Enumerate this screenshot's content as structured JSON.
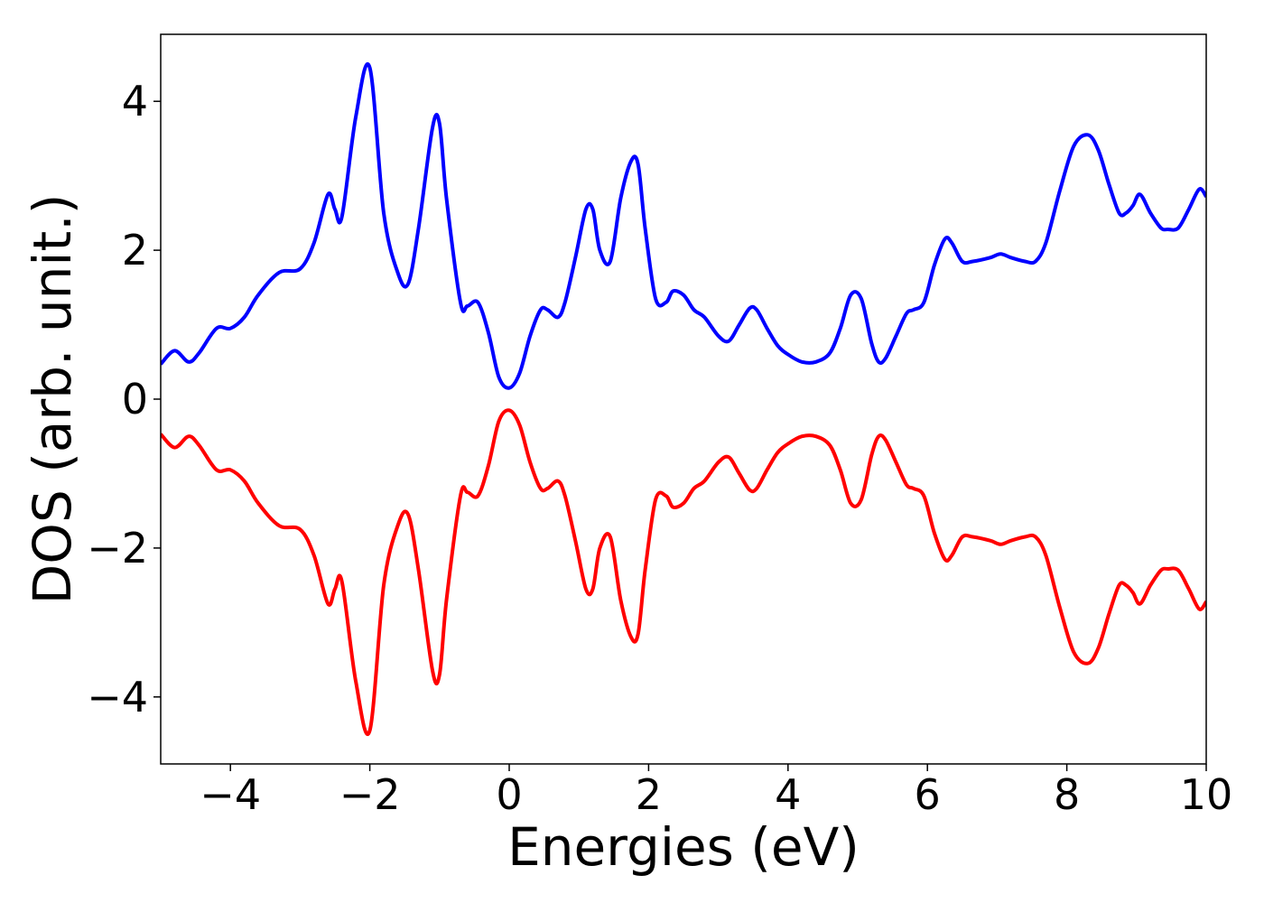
{
  "chart_data": {
    "type": "line",
    "title": "",
    "xlabel": "Energies (eV)",
    "ylabel": "DOS (arb. unit.)",
    "xlim": [
      -5,
      10
    ],
    "ylim": [
      -4.9,
      4.9
    ],
    "xticks": [
      -4,
      -2,
      0,
      2,
      4,
      6,
      8,
      10
    ],
    "yticks": [
      -4,
      -2,
      0,
      2,
      4
    ],
    "xtick_labels": [
      "−4",
      "−2",
      "0",
      "2",
      "4",
      "6",
      "8",
      "10"
    ],
    "ytick_labels": [
      "−4",
      "−2",
      "0",
      "2",
      "4"
    ],
    "grid": false,
    "legend": "none",
    "series": [
      {
        "color": "#0000ff",
        "x": [
          -5,
          -4.8,
          -4.6,
          -4.45,
          -4.2,
          -4,
          -3.8,
          -3.6,
          -3.3,
          -3.0,
          -2.8,
          -2.6,
          -2.5,
          -2.4,
          -2.2,
          -2.0,
          -1.8,
          -1.6,
          -1.45,
          -1.3,
          -1.1,
          -1.0,
          -0.9,
          -0.7,
          -0.6,
          -0.45,
          -0.3,
          -0.15,
          0,
          0.15,
          0.3,
          0.45,
          0.55,
          0.7,
          0.8,
          0.95,
          1.1,
          1.2,
          1.3,
          1.45,
          1.6,
          1.75,
          1.85,
          1.95,
          2.1,
          2.25,
          2.35,
          2.5,
          2.65,
          2.8,
          3.0,
          3.15,
          3.3,
          3.45,
          3.55,
          3.7,
          3.85,
          4.0,
          4.2,
          4.4,
          4.6,
          4.75,
          4.9,
          5.05,
          5.2,
          5.3,
          5.4,
          5.55,
          5.7,
          5.8,
          5.95,
          6.1,
          6.25,
          6.35,
          6.5,
          6.65,
          6.9,
          7.05,
          7.2,
          7.4,
          7.55,
          7.7,
          7.9,
          8.1,
          8.3,
          8.45,
          8.6,
          8.75,
          8.85,
          8.95,
          9.05,
          9.2,
          9.35,
          9.45,
          9.6,
          9.75,
          9.9,
          10
        ],
        "values": [
          0.47,
          0.65,
          0.5,
          0.62,
          0.95,
          0.95,
          1.1,
          1.4,
          1.7,
          1.75,
          2.1,
          2.75,
          2.55,
          2.45,
          3.8,
          4.45,
          2.5,
          1.7,
          1.55,
          2.3,
          3.65,
          3.7,
          2.7,
          1.3,
          1.25,
          1.3,
          0.9,
          0.3,
          0.15,
          0.35,
          0.85,
          1.2,
          1.2,
          1.1,
          1.3,
          1.9,
          2.55,
          2.55,
          2.0,
          1.85,
          2.7,
          3.2,
          3.15,
          2.3,
          1.35,
          1.3,
          1.45,
          1.4,
          1.2,
          1.1,
          0.85,
          0.78,
          1.0,
          1.22,
          1.2,
          0.95,
          0.72,
          0.6,
          0.5,
          0.5,
          0.62,
          0.95,
          1.4,
          1.35,
          0.75,
          0.5,
          0.55,
          0.85,
          1.15,
          1.2,
          1.3,
          1.8,
          2.15,
          2.1,
          1.85,
          1.85,
          1.9,
          1.95,
          1.9,
          1.85,
          1.85,
          2.1,
          2.8,
          3.4,
          3.55,
          3.35,
          2.9,
          2.5,
          2.5,
          2.6,
          2.75,
          2.5,
          2.3,
          2.28,
          2.3,
          2.55,
          2.82,
          2.72
        ]
      },
      {
        "color": "#ff0000",
        "x": [
          -5,
          -4.8,
          -4.6,
          -4.45,
          -4.2,
          -4,
          -3.8,
          -3.6,
          -3.3,
          -3.0,
          -2.8,
          -2.6,
          -2.5,
          -2.4,
          -2.2,
          -2.0,
          -1.8,
          -1.6,
          -1.45,
          -1.3,
          -1.1,
          -1.0,
          -0.9,
          -0.7,
          -0.6,
          -0.45,
          -0.3,
          -0.15,
          0,
          0.15,
          0.3,
          0.45,
          0.55,
          0.7,
          0.8,
          0.95,
          1.1,
          1.2,
          1.3,
          1.45,
          1.6,
          1.75,
          1.85,
          1.95,
          2.1,
          2.25,
          2.35,
          2.5,
          2.65,
          2.8,
          3.0,
          3.15,
          3.3,
          3.45,
          3.55,
          3.7,
          3.85,
          4.0,
          4.2,
          4.4,
          4.6,
          4.75,
          4.9,
          5.05,
          5.2,
          5.3,
          5.4,
          5.55,
          5.7,
          5.8,
          5.95,
          6.1,
          6.25,
          6.35,
          6.5,
          6.65,
          6.9,
          7.05,
          7.2,
          7.4,
          7.55,
          7.7,
          7.9,
          8.1,
          8.3,
          8.45,
          8.6,
          8.75,
          8.85,
          8.95,
          9.05,
          9.2,
          9.35,
          9.45,
          9.6,
          9.75,
          9.9,
          10
        ],
        "values": [
          -0.47,
          -0.65,
          -0.5,
          -0.62,
          -0.95,
          -0.95,
          -1.1,
          -1.4,
          -1.7,
          -1.75,
          -2.1,
          -2.75,
          -2.55,
          -2.45,
          -3.8,
          -4.45,
          -2.5,
          -1.7,
          -1.55,
          -2.3,
          -3.65,
          -3.7,
          -2.7,
          -1.3,
          -1.25,
          -1.3,
          -0.9,
          -0.3,
          -0.15,
          -0.35,
          -0.85,
          -1.2,
          -1.2,
          -1.1,
          -1.3,
          -1.9,
          -2.55,
          -2.55,
          -2.0,
          -1.85,
          -2.7,
          -3.2,
          -3.15,
          -2.3,
          -1.35,
          -1.3,
          -1.45,
          -1.4,
          -1.2,
          -1.1,
          -0.85,
          -0.78,
          -1.0,
          -1.22,
          -1.2,
          -0.95,
          -0.72,
          -0.6,
          -0.5,
          -0.5,
          -0.62,
          -0.95,
          -1.4,
          -1.35,
          -0.75,
          -0.5,
          -0.55,
          -0.85,
          -1.15,
          -1.2,
          -1.3,
          -1.8,
          -2.15,
          -2.1,
          -1.85,
          -1.85,
          -1.9,
          -1.95,
          -1.9,
          -1.85,
          -1.85,
          -2.1,
          -2.8,
          -3.4,
          -3.55,
          -3.35,
          -2.9,
          -2.5,
          -2.5,
          -2.6,
          -2.75,
          -2.5,
          -2.3,
          -2.28,
          -2.3,
          -2.55,
          -2.82,
          -2.72
        ]
      }
    ]
  }
}
